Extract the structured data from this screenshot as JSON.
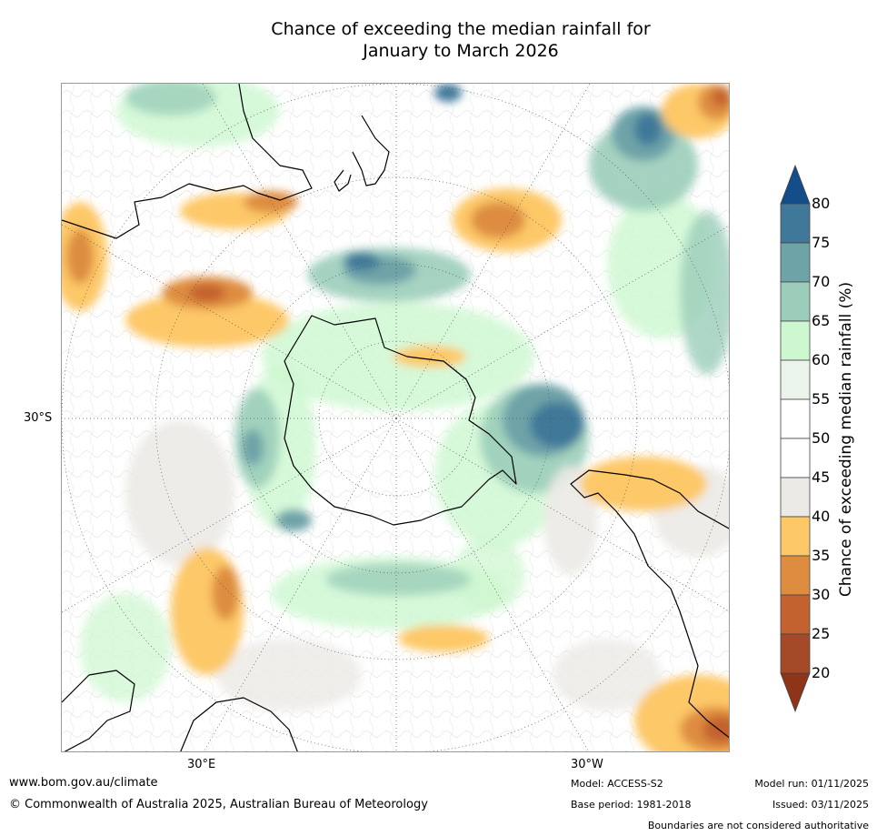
{
  "title": {
    "line1": "Chance of exceeding the median rainfall for",
    "line2": "January to March 2026"
  },
  "map": {
    "projection": "south-polar-stereographic",
    "labels": {
      "lat_30s": "30°S",
      "lon_30e": "30°E",
      "lon_30w": "30°W"
    },
    "continents": [
      "Australia",
      "New Zealand",
      "Antarctica",
      "South America",
      "Africa"
    ]
  },
  "colorbar": {
    "title": "Chance of exceeding median rainfall (%)",
    "ticks": [
      "80",
      "75",
      "70",
      "65",
      "60",
      "55",
      "50",
      "45",
      "40",
      "35",
      "30",
      "25",
      "20"
    ],
    "colors": {
      "over": "#134e8a",
      "75-80": "#3f7899",
      "70-75": "#6ea3a8",
      "65-70": "#9bcdba",
      "60-65": "#ccf7cf",
      "55-60": "#eaf4ea",
      "50-55": "#ffffff",
      "45-50": "#ffffff",
      "40-45": "#eceae6",
      "35-40": "#fdc867",
      "30-35": "#de8d40",
      "25-30": "#c4622f",
      "20-25": "#a44a28",
      "under": "#8f3319"
    }
  },
  "footer": {
    "website": "www.bom.gov.au/climate",
    "copyright": "© Commonwealth of Australia 2025, Australian Bureau of Meteorology",
    "model": "Model: ACCESS-S2",
    "base_period": "Base period: 1981-2018",
    "model_run": "Model run: 01/11/2025",
    "issued": "Issued: 03/11/2025",
    "disclaimer": "Boundaries are not considered authoritative"
  }
}
